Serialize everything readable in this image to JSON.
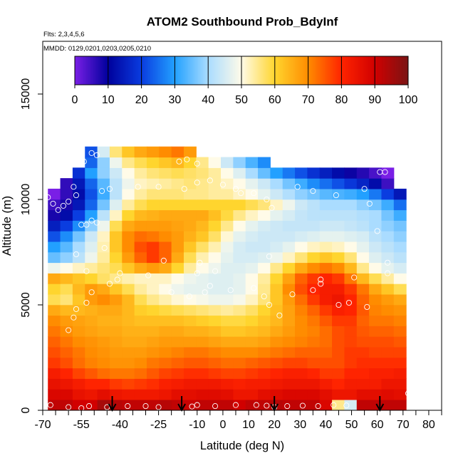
{
  "chart_data": {
    "type": "heatmap",
    "title": "ATOM2 Southbound Prob_BdyInf",
    "annotations": [
      "Flts: 2,3,4,5,6",
      "MMDD: 0129,0201,0203,0205,0210"
    ],
    "xlabel": "Latitude (deg N)",
    "ylabel": "Altitude (m)",
    "xlim": [
      -70,
      85
    ],
    "ylim": [
      0,
      17500
    ],
    "x_ticks": [
      -70,
      -55,
      -40,
      -25,
      -10,
      0,
      10,
      20,
      30,
      40,
      50,
      60,
      70,
      80
    ],
    "x_tick_labels": [
      "-70",
      "-55",
      "-40",
      "-25",
      "-10",
      "0",
      "10",
      "20",
      "30",
      "40",
      "50",
      "60",
      "70",
      "80"
    ],
    "x_minor_ticks": [
      -65,
      -60,
      -50,
      -45,
      -35,
      -30,
      -20,
      -15,
      -5,
      5,
      15,
      25,
      35,
      45,
      55,
      65,
      75,
      85
    ],
    "y_ticks": [
      0,
      5000,
      10000,
      15000
    ],
    "y_tick_labels": [
      "0",
      "5000",
      "10000",
      "15000"
    ],
    "colorbar": {
      "range": [
        0,
        100
      ],
      "ticks": [
        0,
        10,
        20,
        30,
        40,
        50,
        60,
        70,
        80,
        90,
        100
      ],
      "tick_labels": [
        "0",
        "10",
        "20",
        "30",
        "40",
        "50",
        "60",
        "70",
        "80",
        "90",
        "100"
      ],
      "colors": [
        "#7a1fe6",
        "#00009c",
        "#0a3de0",
        "#22a0ff",
        "#aadcff",
        "#fffbe8",
        "#ffd52e",
        "#ff8c00",
        "#ff2400",
        "#d10000",
        "#7a1414"
      ]
    },
    "altitude_rows": [
      {
        "alt": 250,
        "values": [
          92,
          92,
          90,
          90,
          95,
          93,
          92,
          92,
          92,
          93,
          92,
          91,
          92,
          92,
          92,
          90,
          92,
          92,
          93,
          92,
          92,
          92,
          88,
          55,
          45,
          92,
          92,
          92,
          92
        ]
      },
      {
        "alt": 750,
        "values": [
          88,
          88,
          85,
          84,
          86,
          84,
          83,
          83,
          83,
          84,
          86,
          86,
          87,
          87,
          86,
          84,
          84,
          86,
          87,
          88,
          88,
          88,
          86,
          84,
          84,
          86,
          86,
          87,
          86
        ]
      },
      {
        "alt": 1250,
        "values": [
          85,
          84,
          82,
          80,
          80,
          78,
          77,
          78,
          79,
          81,
          82,
          83,
          83,
          83,
          82,
          81,
          82,
          82,
          83,
          84,
          84,
          84,
          82,
          80,
          82,
          82,
          82,
          84,
          84
        ]
      },
      {
        "alt": 1750,
        "values": [
          82,
          80,
          77,
          75,
          73,
          72,
          72,
          73,
          75,
          77,
          78,
          79,
          79,
          78,
          77,
          77,
          78,
          79,
          80,
          81,
          81,
          80,
          78,
          78,
          80,
          80,
          81,
          81,
          82
        ]
      },
      {
        "alt": 2250,
        "values": [
          78,
          76,
          73,
          71,
          70,
          69,
          69,
          70,
          72,
          73,
          74,
          75,
          75,
          74,
          73,
          73,
          74,
          75,
          76,
          77,
          77,
          76,
          76,
          76,
          78,
          79,
          79,
          79,
          79
        ]
      },
      {
        "alt": 2750,
        "values": [
          76,
          74,
          72,
          70,
          69,
          68,
          68,
          68,
          69,
          70,
          71,
          72,
          72,
          71,
          70,
          70,
          70,
          71,
          72,
          73,
          74,
          74,
          74,
          76,
          78,
          78,
          77,
          77,
          77
        ]
      },
      {
        "alt": 3250,
        "values": [
          74,
          72,
          70,
          69,
          68,
          67,
          66,
          66,
          67,
          68,
          68,
          68,
          68,
          67,
          66,
          66,
          66,
          67,
          69,
          70,
          71,
          72,
          73,
          76,
          77,
          76,
          76,
          76,
          75
        ]
      },
      {
        "alt": 3750,
        "values": [
          72,
          70,
          68,
          67,
          66,
          66,
          65,
          65,
          65,
          66,
          66,
          65,
          65,
          64,
          62,
          62,
          63,
          64,
          66,
          68,
          70,
          71,
          73,
          76,
          77,
          75,
          74,
          74,
          73
        ]
      },
      {
        "alt": 4250,
        "values": [
          70,
          68,
          67,
          66,
          65,
          65,
          64,
          63,
          63,
          63,
          63,
          62,
          61,
          60,
          59,
          59,
          60,
          62,
          64,
          67,
          70,
          72,
          75,
          78,
          78,
          74,
          72,
          72,
          71
        ]
      },
      {
        "alt": 4750,
        "values": [
          66,
          64,
          64,
          65,
          66,
          66,
          64,
          61,
          60,
          59,
          58,
          57,
          56,
          55,
          54,
          55,
          57,
          60,
          63,
          67,
          71,
          74,
          78,
          81,
          80,
          75,
          71,
          70,
          69
        ]
      },
      {
        "alt": 5250,
        "values": [
          58,
          56,
          62,
          68,
          70,
          68,
          64,
          58,
          55,
          53,
          51,
          50,
          49,
          48,
          48,
          49,
          52,
          56,
          62,
          68,
          73,
          78,
          82,
          84,
          80,
          74,
          70,
          68,
          66
        ]
      },
      {
        "alt": 5750,
        "values": [
          60,
          58,
          64,
          68,
          66,
          62,
          58,
          54,
          52,
          50,
          48,
          47,
          47,
          46,
          46,
          47,
          50,
          55,
          62,
          70,
          76,
          80,
          82,
          82,
          78,
          72,
          66,
          62,
          58
        ]
      },
      {
        "alt": 6250,
        "values": [
          66,
          64,
          62,
          60,
          57,
          55,
          53,
          52,
          52,
          52,
          50,
          48,
          47,
          46,
          46,
          47,
          50,
          54,
          60,
          67,
          74,
          78,
          80,
          78,
          72,
          64,
          58,
          54,
          50
        ]
      },
      {
        "alt": 6750,
        "values": [
          48,
          50,
          52,
          54,
          56,
          58,
          62,
          66,
          68,
          66,
          60,
          54,
          50,
          48,
          46,
          46,
          47,
          50,
          55,
          60,
          66,
          70,
          72,
          70,
          64,
          55,
          50,
          47,
          45
        ]
      },
      {
        "alt": 7250,
        "values": [
          35,
          38,
          42,
          48,
          54,
          60,
          68,
          74,
          78,
          74,
          66,
          58,
          53,
          50,
          47,
          45,
          45,
          46,
          48,
          52,
          56,
          60,
          62,
          60,
          56,
          50,
          46,
          44,
          42
        ]
      },
      {
        "alt": 7750,
        "values": [
          30,
          34,
          40,
          46,
          53,
          62,
          70,
          76,
          78,
          74,
          68,
          62,
          57,
          53,
          48,
          45,
          44,
          44,
          45,
          47,
          50,
          52,
          53,
          52,
          50,
          47,
          44,
          42,
          40
        ]
      },
      {
        "alt": 8250,
        "values": [
          22,
          28,
          36,
          44,
          52,
          62,
          70,
          73,
          72,
          70,
          68,
          65,
          62,
          57,
          51,
          47,
          45,
          44,
          44,
          44,
          45,
          46,
          47,
          47,
          46,
          45,
          42,
          40,
          38
        ]
      },
      {
        "alt": 8750,
        "values": [
          15,
          20,
          28,
          38,
          48,
          58,
          66,
          68,
          68,
          68,
          67,
          66,
          64,
          60,
          55,
          50,
          47,
          45,
          44,
          43,
          43,
          43,
          44,
          44,
          43,
          42,
          40,
          38,
          36
        ]
      },
      {
        "alt": 9250,
        "values": [
          8,
          12,
          20,
          30,
          42,
          52,
          60,
          64,
          65,
          66,
          66,
          66,
          66,
          63,
          59,
          55,
          52,
          50,
          47,
          45,
          43,
          42,
          42,
          42,
          42,
          41,
          40,
          36,
          32
        ]
      },
      {
        "alt": 9750,
        "values": [
          5,
          8,
          14,
          24,
          36,
          46,
          54,
          58,
          60,
          60,
          60,
          60,
          60,
          60,
          60,
          60,
          58,
          56,
          52,
          48,
          44,
          42,
          40,
          40,
          40,
          38,
          36,
          32,
          25
        ]
      },
      {
        "alt": 10250,
        "values": [
          0,
          6,
          12,
          22,
          32,
          42,
          50,
          54,
          56,
          56,
          56,
          55,
          55,
          54,
          54,
          52,
          50,
          47,
          44,
          41,
          38,
          36,
          34,
          33,
          32,
          30,
          26,
          20,
          14
        ]
      },
      {
        "alt": 10750,
        "values": [
          null,
          6,
          14,
          24,
          34,
          42,
          48,
          52,
          53,
          54,
          55,
          56,
          55,
          54,
          52,
          50,
          47,
          44,
          40,
          36,
          32,
          28,
          25,
          22,
          19,
          16,
          12,
          5,
          null
        ]
      },
      {
        "alt": 11250,
        "values": [
          null,
          null,
          18,
          30,
          38,
          44,
          50,
          54,
          56,
          57,
          58,
          57,
          56,
          54,
          50,
          46,
          40,
          35,
          30,
          26,
          22,
          18,
          15,
          12,
          9,
          7,
          4,
          0,
          null
        ]
      },
      {
        "alt": 11750,
        "values": [
          null,
          null,
          null,
          24,
          38,
          48,
          55,
          58,
          60,
          62,
          64,
          60,
          55,
          50,
          44,
          38,
          33,
          28,
          null,
          null,
          null,
          null,
          null,
          null,
          null,
          null,
          null,
          null,
          null
        ]
      },
      {
        "alt": 12250,
        "values": [
          null,
          null,
          null,
          22,
          45,
          56,
          62,
          66,
          68,
          70,
          72,
          68,
          null,
          null,
          null,
          null,
          null,
          null,
          null,
          null,
          null,
          null,
          null,
          null,
          null,
          null,
          null,
          null,
          null
        ]
      }
    ],
    "flight_tracks_latitude": [
      -43,
      -16,
      20,
      61
    ],
    "samples": [
      [
        -67,
        250
      ],
      [
        -60,
        150
      ],
      [
        -55,
        100
      ],
      [
        -52,
        200
      ],
      [
        -45,
        150
      ],
      [
        -37,
        200
      ],
      [
        -30,
        200
      ],
      [
        -25,
        150
      ],
      [
        -12,
        180
      ],
      [
        -10,
        250
      ],
      [
        -3,
        200
      ],
      [
        5,
        250
      ],
      [
        13,
        250
      ],
      [
        17,
        220
      ],
      [
        20,
        150
      ],
      [
        25,
        200
      ],
      [
        31,
        220
      ],
      [
        37,
        200
      ],
      [
        43,
        250
      ],
      [
        48,
        230
      ],
      [
        72,
        800
      ],
      [
        -60,
        3800
      ],
      [
        -58,
        4400
      ],
      [
        -57,
        4800
      ],
      [
        -53,
        5100
      ],
      [
        -51,
        5600
      ],
      [
        -44,
        6000
      ],
      [
        -41,
        6200
      ],
      [
        -20,
        5600
      ],
      [
        -13,
        5400
      ],
      [
        -7,
        5600
      ],
      [
        -5,
        5900
      ],
      [
        3,
        5700
      ],
      [
        12,
        5800
      ],
      [
        16,
        5400
      ],
      [
        18,
        5000
      ],
      [
        22,
        4500
      ],
      [
        27,
        5500
      ],
      [
        35,
        5700
      ],
      [
        38,
        6000
      ],
      [
        45,
        5000
      ],
      [
        49,
        5100
      ],
      [
        51,
        6300
      ],
      [
        56,
        4900
      ],
      [
        64,
        6500
      ],
      [
        64,
        7000
      ],
      [
        -57,
        7400
      ],
      [
        -53,
        6600
      ],
      [
        -40,
        6500
      ],
      [
        -29,
        6400
      ],
      [
        -23,
        7100
      ],
      [
        -10,
        6500
      ],
      [
        -9,
        7000
      ],
      [
        -3,
        6600
      ],
      [
        18,
        7300
      ],
      [
        38,
        6200
      ],
      [
        60,
        8500
      ],
      [
        -68,
        10100
      ],
      [
        -66,
        9800
      ],
      [
        -64,
        9500
      ],
      [
        -62,
        9700
      ],
      [
        -60,
        9900
      ],
      [
        -58,
        10600
      ],
      [
        -57,
        10200
      ],
      [
        -55,
        8800
      ],
      [
        -53,
        8800
      ],
      [
        -51,
        9000
      ],
      [
        -49,
        8900
      ],
      [
        -46,
        7700
      ],
      [
        -47,
        10400
      ],
      [
        -44,
        10500
      ],
      [
        -33,
        10600
      ],
      [
        -25,
        10600
      ],
      [
        -15,
        10500
      ],
      [
        -10,
        10800
      ],
      [
        -5,
        10900
      ],
      [
        0,
        10700
      ],
      [
        5,
        10500
      ],
      [
        7,
        10300
      ],
      [
        12,
        10300
      ],
      [
        17,
        10000
      ],
      [
        19,
        9600
      ],
      [
        29,
        10600
      ],
      [
        35,
        10400
      ],
      [
        44,
        10200
      ],
      [
        55,
        10500
      ],
      [
        57,
        9800
      ],
      [
        61,
        11300
      ],
      [
        63,
        11300
      ],
      [
        -54,
        11800
      ],
      [
        -51,
        12200
      ],
      [
        -49,
        12100
      ],
      [
        -17,
        11800
      ],
      [
        -14,
        11900
      ],
      [
        -10,
        11700
      ]
    ]
  }
}
